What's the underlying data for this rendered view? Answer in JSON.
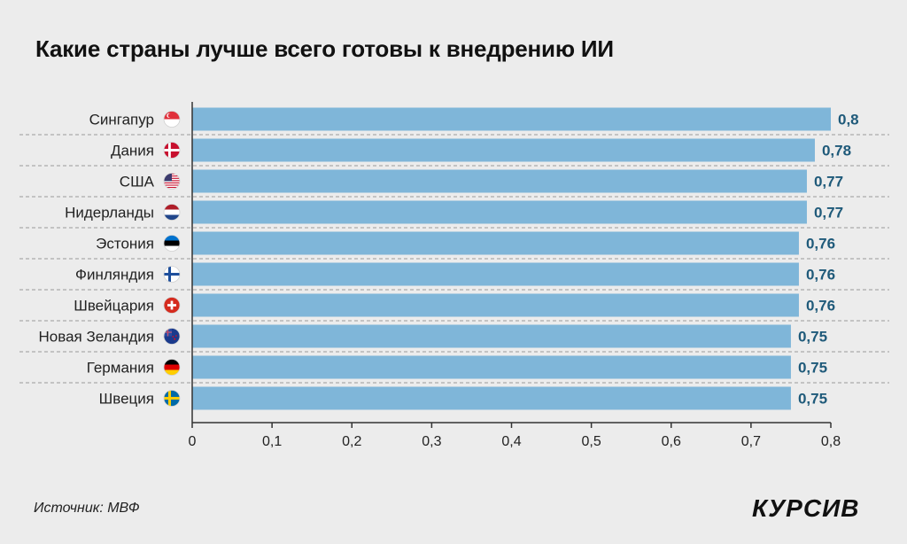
{
  "title": "Какие страны лучше всего готовы к внедрению ИИ",
  "source": "Источник: МВФ",
  "brand": "КУРСИВ",
  "colors": {
    "bar": "#7fb6d9",
    "value_text": "#1f5a7a",
    "background": "#ececec"
  },
  "chart_data": {
    "type": "bar",
    "orientation": "horizontal",
    "categories": [
      "Сингапур",
      "Дания",
      "США",
      "Нидерланды",
      "Эстония",
      "Финляндия",
      "Швейцария",
      "Новая Зеландия",
      "Германия",
      "Швеция"
    ],
    "values": [
      0.8,
      0.78,
      0.77,
      0.77,
      0.76,
      0.76,
      0.76,
      0.75,
      0.75,
      0.75
    ],
    "value_labels": [
      "0,8",
      "0,78",
      "0,77",
      "0,77",
      "0,76",
      "0,76",
      "0,76",
      "0,75",
      "0,75",
      "0,75"
    ],
    "flags": [
      "singapore-flag-icon",
      "denmark-flag-icon",
      "usa-flag-icon",
      "netherlands-flag-icon",
      "estonia-flag-icon",
      "finland-flag-icon",
      "switzerland-flag-icon",
      "new-zealand-flag-icon",
      "germany-flag-icon",
      "sweden-flag-icon"
    ],
    "xlim": [
      0,
      0.8
    ],
    "xticks": [
      0,
      0.1,
      0.2,
      0.3,
      0.4,
      0.5,
      0.6,
      0.7,
      0.8
    ],
    "xtick_labels": [
      "0",
      "0,1",
      "0,2",
      "0,3",
      "0,4",
      "0,5",
      "0,6",
      "0,7",
      "0,8"
    ],
    "grid": "dashed row separators"
  }
}
